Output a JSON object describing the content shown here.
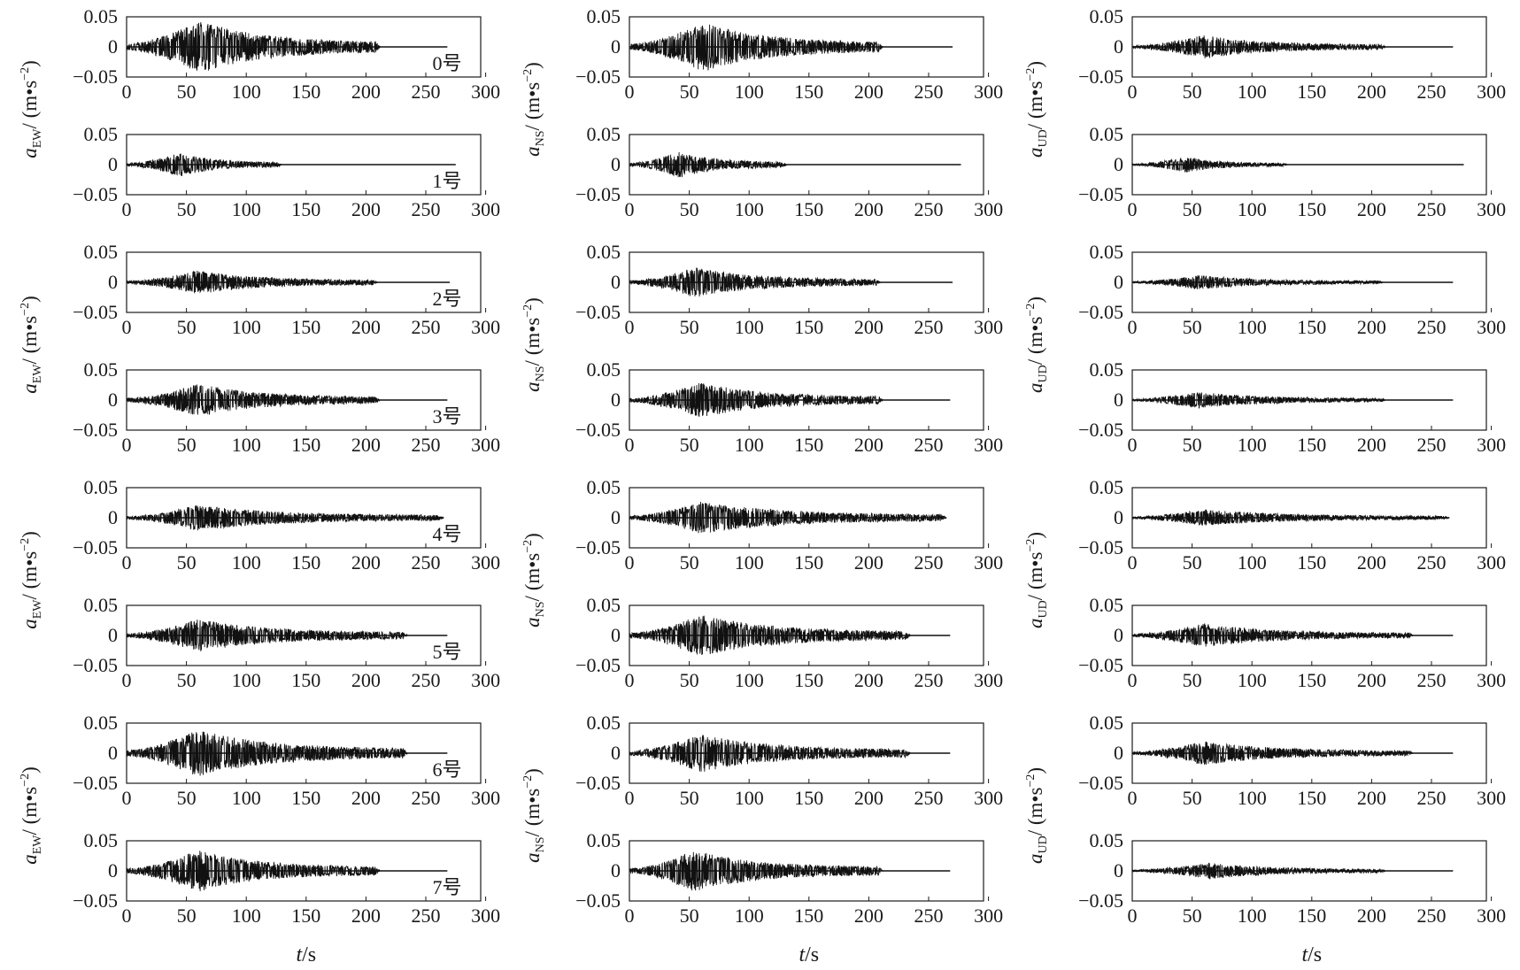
{
  "figure": {
    "columns": [
      {
        "component": "EW",
        "ylabel_main": "a",
        "ylabel_sub": "EW",
        "ylabel_unit": "/ (m•s"
      },
      {
        "component": "NS",
        "ylabel_main": "a",
        "ylabel_sub": "NS",
        "ylabel_unit": "/ (m•s"
      },
      {
        "component": "UD",
        "ylabel_main": "a",
        "ylabel_sub": "UD",
        "ylabel_unit": "/ (m•s"
      }
    ],
    "ylabel_unit_exp": "−2",
    "ylabel_unit_close": ")",
    "xlabel_main": "t",
    "xlabel_unit": "/s",
    "xticks": [
      "0",
      "50",
      "100",
      "150",
      "200",
      "250",
      "300"
    ],
    "yticks": [
      "0.05",
      "0",
      "−0.05"
    ],
    "station_labels": [
      "0号",
      "1号",
      "2号",
      "3号",
      "4号",
      "5号",
      "6号",
      "7号"
    ]
  },
  "chart_data": {
    "type": "line",
    "description_units": {
      "x": "s",
      "y": "m·s^-2"
    },
    "xlim": [
      0,
      300
    ],
    "ylim": [
      -0.05,
      0.05
    ],
    "grid": false,
    "panels": [
      {
        "station": "0号",
        "component": "EW",
        "signal_end": 212,
        "trace_end": 268,
        "peak_time": 62,
        "peak_amplitude": 0.045
      },
      {
        "station": "0号",
        "component": "NS",
        "signal_end": 212,
        "trace_end": 270,
        "peak_time": 62,
        "peak_amplitude": 0.042
      },
      {
        "station": "0号",
        "component": "UD",
        "signal_end": 212,
        "trace_end": 268,
        "peak_time": 60,
        "peak_amplitude": 0.02
      },
      {
        "station": "1号",
        "component": "EW",
        "signal_end": 130,
        "trace_end": 275,
        "peak_time": 45,
        "peak_amplitude": 0.02
      },
      {
        "station": "1号",
        "component": "NS",
        "signal_end": 132,
        "trace_end": 277,
        "peak_time": 42,
        "peak_amplitude": 0.022
      },
      {
        "station": "1号",
        "component": "UD",
        "signal_end": 130,
        "trace_end": 277,
        "peak_time": 45,
        "peak_amplitude": 0.013
      },
      {
        "station": "2号",
        "component": "EW",
        "signal_end": 210,
        "trace_end": 270,
        "peak_time": 60,
        "peak_amplitude": 0.02
      },
      {
        "station": "2号",
        "component": "NS",
        "signal_end": 210,
        "trace_end": 270,
        "peak_time": 55,
        "peak_amplitude": 0.025
      },
      {
        "station": "2号",
        "component": "UD",
        "signal_end": 210,
        "trace_end": 268,
        "peak_time": 55,
        "peak_amplitude": 0.012
      },
      {
        "station": "3号",
        "component": "EW",
        "signal_end": 212,
        "trace_end": 268,
        "peak_time": 60,
        "peak_amplitude": 0.028
      },
      {
        "station": "3号",
        "component": "NS",
        "signal_end": 212,
        "trace_end": 268,
        "peak_time": 60,
        "peak_amplitude": 0.03
      },
      {
        "station": "3号",
        "component": "UD",
        "signal_end": 212,
        "trace_end": 268,
        "peak_time": 55,
        "peak_amplitude": 0.014
      },
      {
        "station": "4号",
        "component": "EW",
        "signal_end": 265,
        "trace_end": 265,
        "peak_time": 60,
        "peak_amplitude": 0.022
      },
      {
        "station": "4号",
        "component": "NS",
        "signal_end": 265,
        "trace_end": 265,
        "peak_time": 60,
        "peak_amplitude": 0.027
      },
      {
        "station": "4号",
        "component": "UD",
        "signal_end": 265,
        "trace_end": 265,
        "peak_time": 60,
        "peak_amplitude": 0.014
      },
      {
        "station": "5号",
        "component": "EW",
        "signal_end": 235,
        "trace_end": 268,
        "peak_time": 60,
        "peak_amplitude": 0.028
      },
      {
        "station": "5号",
        "component": "NS",
        "signal_end": 235,
        "trace_end": 268,
        "peak_time": 60,
        "peak_amplitude": 0.035
      },
      {
        "station": "5号",
        "component": "UD",
        "signal_end": 235,
        "trace_end": 268,
        "peak_time": 60,
        "peak_amplitude": 0.02
      },
      {
        "station": "6号",
        "component": "EW",
        "signal_end": 235,
        "trace_end": 268,
        "peak_time": 60,
        "peak_amplitude": 0.04
      },
      {
        "station": "6号",
        "component": "NS",
        "signal_end": 235,
        "trace_end": 268,
        "peak_time": 60,
        "peak_amplitude": 0.032
      },
      {
        "station": "6号",
        "component": "UD",
        "signal_end": 235,
        "trace_end": 268,
        "peak_time": 60,
        "peak_amplitude": 0.02
      },
      {
        "station": "7号",
        "component": "EW",
        "signal_end": 212,
        "trace_end": 268,
        "peak_time": 60,
        "peak_amplitude": 0.035
      },
      {
        "station": "7号",
        "component": "NS",
        "signal_end": 212,
        "trace_end": 268,
        "peak_time": 55,
        "peak_amplitude": 0.035
      },
      {
        "station": "7号",
        "component": "UD",
        "signal_end": 212,
        "trace_end": 268,
        "peak_time": 65,
        "peak_amplitude": 0.014
      }
    ]
  }
}
